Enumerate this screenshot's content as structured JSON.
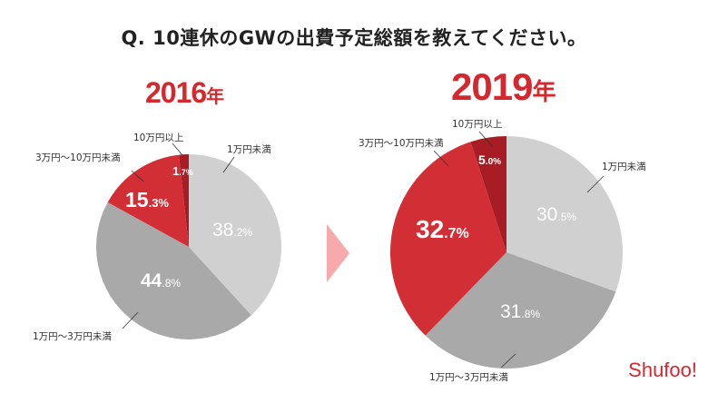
{
  "chart_data": {
    "type": "pie",
    "title": "Q. 10連休のGWの出費予定総額を教えてください。",
    "categories": [
      "1万円未満",
      "1万円〜3万円未満",
      "3万円〜10万円未満",
      "10万円以上"
    ],
    "colors": [
      "#d0d0d0",
      "#a9a9a9",
      "#d12f35",
      "#a81c23"
    ],
    "series": [
      {
        "name": "2016",
        "year_suffix": "年",
        "values": [
          38.2,
          44.8,
          15.3,
          1.7
        ],
        "value_labels": [
          {
            "int": "38",
            "dec": ".2%"
          },
          {
            "int": "44",
            "dec": ".8%"
          },
          {
            "int": "15",
            "dec": ".3%"
          },
          {
            "int": "1",
            "dec": ".7%"
          }
        ]
      },
      {
        "name": "2019",
        "year_suffix": "年",
        "values": [
          30.5,
          31.8,
          32.7,
          5.0
        ],
        "value_labels": [
          {
            "int": "30",
            "dec": ".5%"
          },
          {
            "int": "31",
            "dec": ".8%"
          },
          {
            "int": "32",
            "dec": ".7%"
          },
          {
            "int": "5",
            "dec": ".0%"
          }
        ]
      }
    ],
    "start_angle": "12 o'clock",
    "direction": "clockwise"
  },
  "arrow_color": "#f7a9ab",
  "brand": {
    "logo_text": "Shufoo!",
    "color": "#d4282e"
  }
}
